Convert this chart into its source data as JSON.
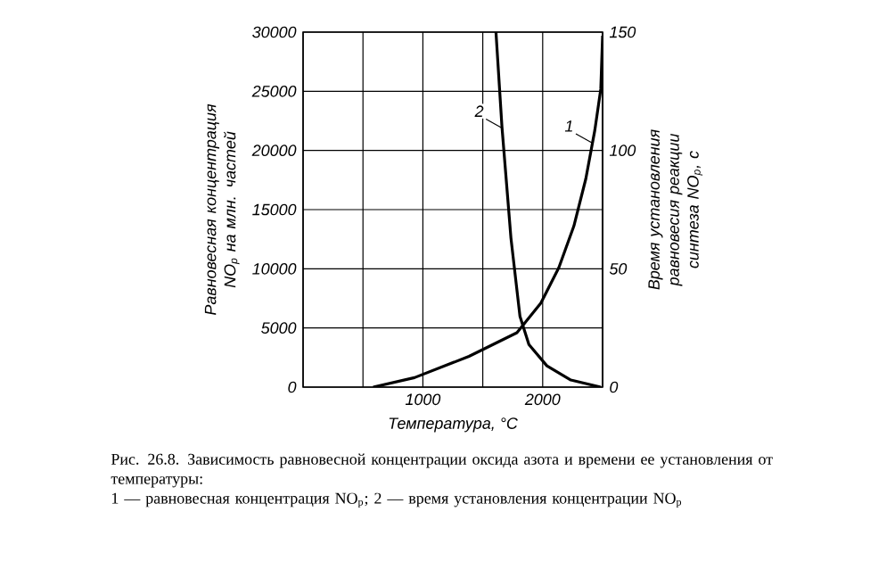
{
  "chart_data": {
    "type": "line",
    "xlabel": "Температура, °С",
    "ylabel": "Равновесная концентрация NO$_{p}$ на млн. частей",
    "y2label": "Время установления равновесия реакции синтеза NO$_{p}$, с",
    "xlim": [
      0,
      2500
    ],
    "ylim": [
      0,
      30000
    ],
    "y2lim": [
      0,
      150
    ],
    "xticks": [
      {
        "value": 0,
        "label": null
      },
      {
        "value": 500,
        "label": null
      },
      1000,
      {
        "value": 1500,
        "label": null
      },
      2000,
      {
        "value": 2500,
        "label": null
      }
    ],
    "yticks": [
      0,
      5000,
      10000,
      15000,
      20000,
      25000,
      30000
    ],
    "y2ticks": [
      0,
      50,
      100,
      150
    ],
    "grid": true,
    "series": [
      {
        "color": "#000000",
        "x": [
          585,
          930,
          1385,
          1785,
          1985,
          2135,
          2260,
          2360,
          2435,
          2485,
          2500
        ],
        "values": [
          0,
          800,
          2600,
          4600,
          7100,
          10100,
          13600,
          17600,
          21700,
          25200,
          29700
        ]
      },
      {
        "color": "#000000",
        "axis": "y2",
        "x": [
          1610,
          1660,
          1735,
          1810,
          1885,
          2035,
          2235,
          2485
        ],
        "values": [
          150,
          110,
          63,
          30,
          18,
          9,
          3,
          0
        ]
      }
    ],
    "annotations": [
      {
        "text": "1",
        "x": 2410,
        "y": 20650
      },
      {
        "text": "2",
        "x": 1660,
        "y": 21900
      },
      "Рис. 26.8. Зависимость равновесной концентрации оксида азота и времени ее установления от температуры:",
      "1 — равновесная концентрация NO$_{p}$; 2 — время установления концентрации NO$_{p}$"
    ]
  }
}
